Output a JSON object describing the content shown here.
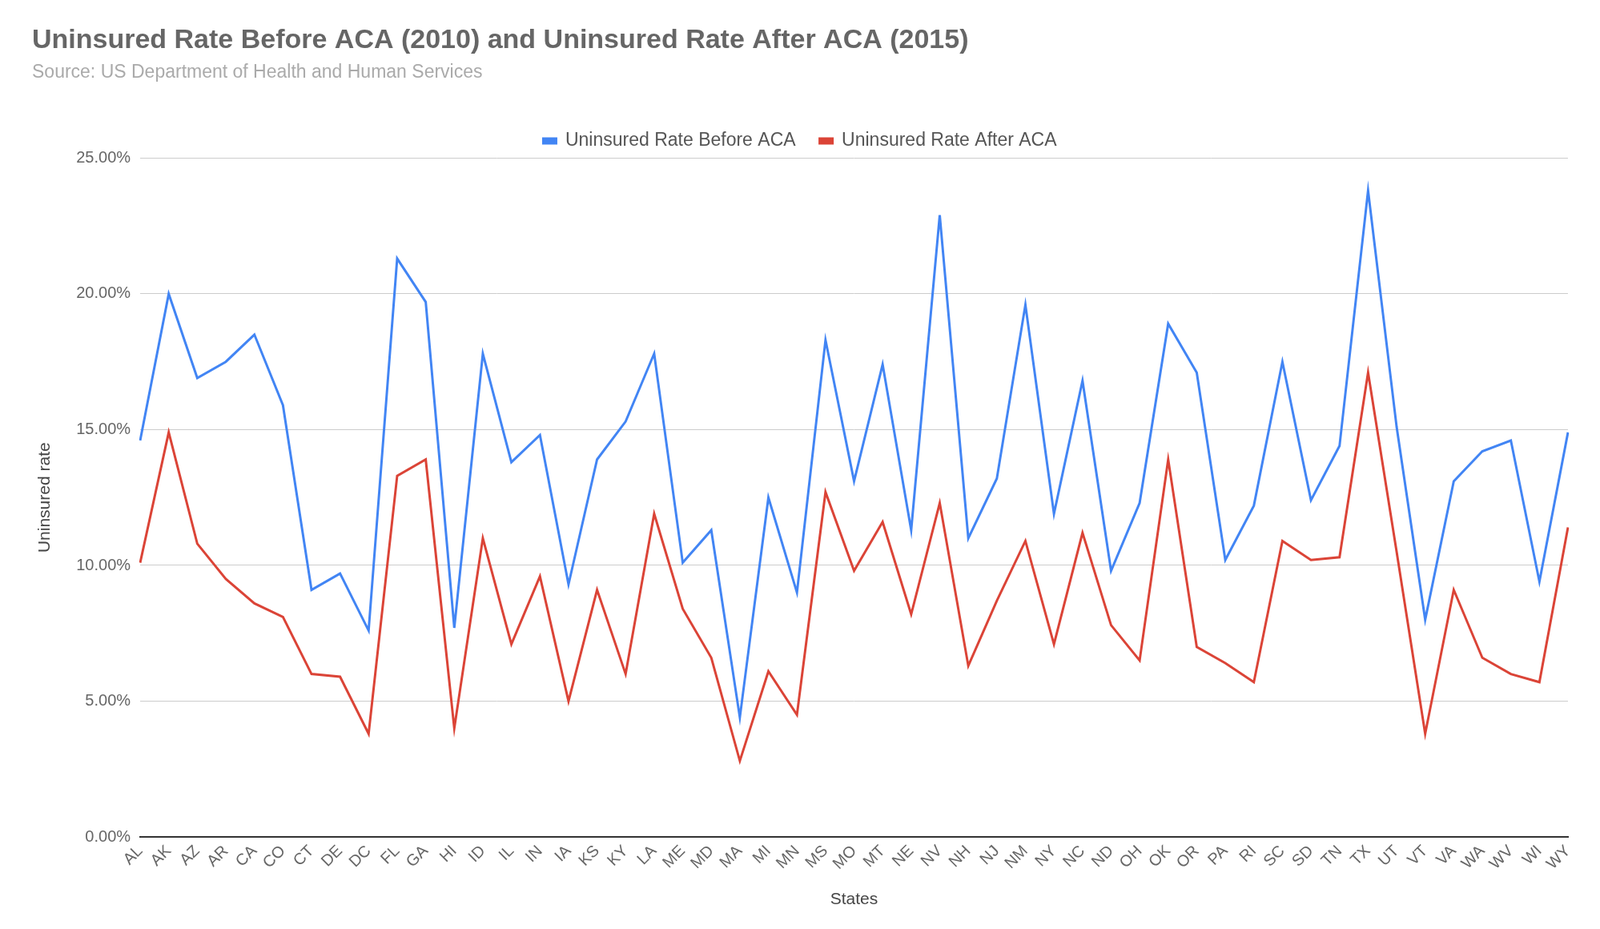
{
  "chart_data": {
    "type": "line",
    "title": "Uninsured Rate Before ACA (2010) and Uninsured Rate After ACA (2015)",
    "subtitle": "Source: US Department of Health and Human Services",
    "x_label": "States",
    "y_label": "Uninsured rate",
    "categories": [
      "AL",
      "AK",
      "AZ",
      "AR",
      "CA",
      "CO",
      "CT",
      "DE",
      "DC",
      "FL",
      "GA",
      "HI",
      "ID",
      "IL",
      "IN",
      "IA",
      "KS",
      "KY",
      "LA",
      "ME",
      "MD",
      "MA",
      "MI",
      "MN",
      "MS",
      "MO",
      "MT",
      "NE",
      "NV",
      "NH",
      "NJ",
      "NM",
      "NY",
      "NC",
      "ND",
      "OH",
      "OK",
      "OR",
      "PA",
      "RI",
      "SC",
      "SD",
      "TN",
      "TX",
      "UT",
      "VT",
      "VA",
      "WA",
      "WV",
      "WI",
      "WY"
    ],
    "series": [
      {
        "name": "Uninsured Rate Before ACA",
        "color": "#4285f4",
        "values": [
          14.6,
          20.0,
          16.9,
          17.5,
          18.5,
          15.9,
          9.1,
          9.7,
          7.6,
          21.3,
          19.7,
          7.7,
          17.8,
          13.8,
          14.8,
          9.3,
          13.9,
          15.3,
          17.8,
          10.1,
          11.3,
          4.4,
          12.5,
          9.0,
          18.3,
          13.1,
          17.4,
          11.3,
          22.9,
          11.0,
          13.2,
          19.6,
          11.9,
          16.8,
          9.8,
          12.3,
          18.9,
          17.1,
          10.2,
          12.2,
          17.5,
          12.4,
          14.4,
          23.8,
          15.1,
          8.0,
          13.1,
          14.2,
          14.6,
          9.4,
          14.9
        ]
      },
      {
        "name": "Uninsured Rate After ACA",
        "color": "#db4437",
        "values": [
          10.1,
          14.9,
          10.8,
          9.5,
          8.6,
          8.1,
          6.0,
          5.9,
          3.8,
          13.3,
          13.9,
          4.0,
          11.0,
          7.1,
          9.6,
          5.0,
          9.1,
          6.0,
          11.9,
          8.4,
          6.6,
          2.8,
          6.1,
          4.5,
          12.7,
          9.8,
          11.6,
          8.2,
          12.3,
          6.3,
          8.7,
          10.9,
          7.1,
          11.2,
          7.8,
          6.5,
          13.9,
          7.0,
          6.4,
          5.7,
          10.9,
          10.2,
          10.3,
          17.1,
          10.5,
          3.8,
          9.1,
          6.6,
          6.0,
          5.7,
          11.4
        ]
      }
    ],
    "ylim": [
      0,
      25
    ],
    "yticks": [
      {
        "value": 0,
        "label": "0.00%"
      },
      {
        "value": 5,
        "label": "5.00%"
      },
      {
        "value": 10,
        "label": "10.00%"
      },
      {
        "value": 15,
        "label": "15.00%"
      },
      {
        "value": 20,
        "label": "20.00%"
      },
      {
        "value": 25,
        "label": "25.00%"
      }
    ],
    "grid": true,
    "legend": "top"
  }
}
